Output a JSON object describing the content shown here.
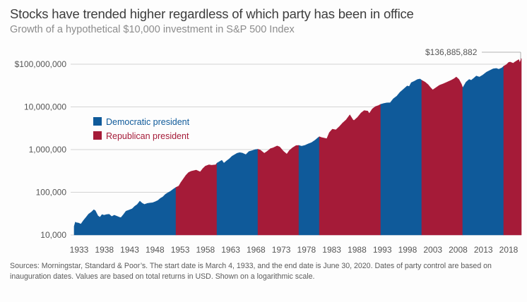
{
  "chart_data": {
    "type": "area",
    "title": "Stocks have trended higher regardless of which party has been in office",
    "subtitle": "Growth of a hypothetical $10,000 investment in S&P 500 Index",
    "xlabel": "",
    "ylabel": "",
    "yscale": "log",
    "ylim": [
      10000,
      150000000
    ],
    "xlim": [
      1933.17,
      2020.5
    ],
    "y_ticks": [
      10000,
      100000,
      1000000,
      10000000,
      100000000
    ],
    "y_tick_labels": [
      "10,000",
      "100,000",
      "1,000,000",
      "10,000,000",
      "$100,000,000"
    ],
    "x_ticks": [
      1933,
      1938,
      1943,
      1948,
      1953,
      1958,
      1963,
      1968,
      1973,
      1978,
      1983,
      1988,
      1993,
      1998,
      2003,
      2008,
      2013,
      2018
    ],
    "grid": true,
    "legend_position": "upper-left",
    "legend": [
      {
        "label": "Democratic president",
        "party": "D",
        "color": "#0F5A9A"
      },
      {
        "label": "Republican president",
        "party": "R",
        "color": "#A51B38"
      }
    ],
    "annotation": {
      "label": "$136,885,882",
      "x": 2020.5,
      "y": 136885882
    },
    "party_periods": [
      {
        "party": "D",
        "start": 1933.17,
        "end": 1953.05
      },
      {
        "party": "R",
        "start": 1953.05,
        "end": 1961.05
      },
      {
        "party": "D",
        "start": 1961.05,
        "end": 1969.05
      },
      {
        "party": "R",
        "start": 1969.05,
        "end": 1977.05
      },
      {
        "party": "D",
        "start": 1977.05,
        "end": 1981.05
      },
      {
        "party": "R",
        "start": 1981.05,
        "end": 1993.05
      },
      {
        "party": "D",
        "start": 1993.05,
        "end": 2001.05
      },
      {
        "party": "R",
        "start": 2001.05,
        "end": 2009.05
      },
      {
        "party": "D",
        "start": 2009.05,
        "end": 2017.05
      },
      {
        "party": "R",
        "start": 2017.05,
        "end": 2020.5
      }
    ],
    "series": [
      {
        "name": "Growth of $10,000",
        "x": [
          1933.17,
          1933.4,
          1933.6,
          1934.0,
          1934.5,
          1935.0,
          1935.5,
          1936.0,
          1936.5,
          1937.0,
          1937.3,
          1937.8,
          1938.2,
          1938.6,
          1939.0,
          1939.5,
          1940.0,
          1940.5,
          1941.0,
          1941.5,
          1942.0,
          1942.3,
          1942.8,
          1943.3,
          1943.8,
          1944.5,
          1945.0,
          1945.5,
          1946.0,
          1946.4,
          1946.9,
          1947.5,
          1948.0,
          1948.5,
          1949.0,
          1949.5,
          1950.0,
          1950.5,
          1951.0,
          1951.5,
          1952.0,
          1952.5,
          1953.05,
          1953.6,
          1954.0,
          1954.5,
          1955.0,
          1955.5,
          1956.0,
          1956.5,
          1957.0,
          1957.8,
          1958.3,
          1958.8,
          1959.5,
          1960.0,
          1960.8,
          1961.05,
          1961.5,
          1962.0,
          1962.4,
          1962.9,
          1963.5,
          1964.0,
          1964.5,
          1965.0,
          1965.5,
          1966.0,
          1966.7,
          1967.3,
          1968.0,
          1968.5,
          1969.05,
          1969.5,
          1970.3,
          1970.8,
          1971.5,
          1972.0,
          1972.8,
          1973.3,
          1974.0,
          1974.7,
          1975.2,
          1975.8,
          1976.5,
          1977.05,
          1977.6,
          1978.2,
          1978.8,
          1979.5,
          1980.2,
          1980.8,
          1981.05,
          1981.6,
          1982.5,
          1983.0,
          1983.6,
          1984.3,
          1985.0,
          1985.6,
          1986.3,
          1987.0,
          1987.6,
          1987.8,
          1988.5,
          1989.2,
          1989.8,
          1990.5,
          1990.8,
          1991.4,
          1992.0,
          1992.6,
          1993.05,
          1993.6,
          1994.2,
          1994.9,
          1995.5,
          1996.2,
          1996.8,
          1997.5,
          1998.2,
          1998.6,
          1999.0,
          1999.6,
          2000.2,
          2000.7,
          2001.05,
          2001.7,
          2002.3,
          2002.8,
          2003.2,
          2003.8,
          2004.5,
          2005.3,
          2006.0,
          2006.8,
          2007.4,
          2007.8,
          2008.3,
          2008.8,
          2009.05,
          2009.2,
          2009.7,
          2010.3,
          2010.7,
          2011.3,
          2011.7,
          2012.3,
          2013.0,
          2013.7,
          2014.4,
          2015.0,
          2015.6,
          2016.1,
          2016.7,
          2017.05,
          2017.6,
          2018.0,
          2018.3,
          2018.9,
          2019.2,
          2019.7,
          2020.0,
          2020.2,
          2020.5
        ],
        "values": [
          16000,
          20000,
          19500,
          19000,
          18000,
          22000,
          26000,
          31000,
          34000,
          39000,
          37000,
          28000,
          26000,
          30000,
          29000,
          30000,
          30500,
          27000,
          29000,
          27500,
          26000,
          25500,
          30000,
          36000,
          38000,
          41000,
          47000,
          52000,
          62000,
          56000,
          52000,
          55000,
          56000,
          57000,
          60000,
          64000,
          72000,
          78000,
          90000,
          98000,
          106000,
          118000,
          130000,
          140000,
          170000,
          205000,
          250000,
          290000,
          310000,
          320000,
          330000,
          300000,
          360000,
          410000,
          440000,
          430000,
          440000,
          480000,
          520000,
          560000,
          480000,
          540000,
          610000,
          700000,
          760000,
          820000,
          850000,
          830000,
          760000,
          900000,
          950000,
          1000000,
          1020000,
          980000,
          820000,
          900000,
          1050000,
          1100000,
          1220000,
          1150000,
          920000,
          780000,
          950000,
          1100000,
          1240000,
          1250000,
          1200000,
          1250000,
          1350000,
          1450000,
          1650000,
          1900000,
          2000000,
          1900000,
          1800000,
          2500000,
          3000000,
          2900000,
          3500000,
          4200000,
          5000000,
          6500000,
          5000000,
          4800000,
          5700000,
          7200000,
          8200000,
          8000000,
          7000000,
          9000000,
          10200000,
          10800000,
          11500000,
          12000000,
          12400000,
          12500000,
          15500000,
          18000000,
          22000000,
          26000000,
          31000000,
          30000000,
          37000000,
          40000000,
          44000000,
          45000000,
          42000000,
          38000000,
          33000000,
          28000000,
          25000000,
          28000000,
          32000000,
          35000000,
          38000000,
          42000000,
          46000000,
          50000000,
          44000000,
          34000000,
          28000000,
          30000000,
          38000000,
          44000000,
          42000000,
          48000000,
          53000000,
          50000000,
          56000000,
          65000000,
          72000000,
          78000000,
          80000000,
          76000000,
          82000000,
          90000000,
          98000000,
          110000000,
          112000000,
          105000000,
          112000000,
          122000000,
          128000000,
          108000000,
          136885882
        ]
      }
    ]
  },
  "footnote": "Sources: Morningstar, Standard & Poor’s. The start date is March 4, 1933, and the end date is June 30, 2020. Dates of party control are based on inauguration dates. Values are based on total returns in USD. Shown on a logarithmic scale."
}
